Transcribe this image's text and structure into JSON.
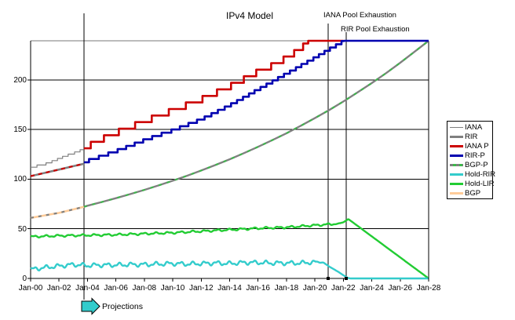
{
  "chart_data": {
    "type": "line",
    "title": "IPv4 Model",
    "x_axis": {
      "years_span": 28,
      "tick_interval_years": 2,
      "tick_labels": [
        "Jan-00",
        "Jan-02",
        "Jan-04",
        "Jan-06",
        "Jan-08",
        "Jan-10",
        "Jan-12",
        "Jan-14",
        "Jan-16",
        "Jan-18",
        "Jan-20",
        "Jan-22",
        "Jan-24",
        "Jan-26",
        "Jan-28"
      ]
    },
    "y_axis": {
      "ticks": [
        0,
        50,
        100,
        150,
        200
      ],
      "max_value": 239.3
    },
    "annotations": {
      "iana": {
        "label": "IANA Pool Exhaustion",
        "year": 20.93
      },
      "rir": {
        "label": "RIR Pool Exhaustion",
        "year": 22.2
      },
      "projections": {
        "label": "Projections",
        "year": 3.756
      }
    },
    "colors": {
      "gray": "#808080",
      "red": "#cc0000",
      "blue": "#0000b0",
      "cyan": "#33cccc",
      "green": "#22cc33",
      "tan": "#ffcc99",
      "dash_green": "#3cb84a",
      "axis": "#000000",
      "top_border": "#777777",
      "arrow_fill": "#33cccc"
    },
    "legend": [
      {
        "name": "IANA",
        "color": "#808080",
        "width": 1
      },
      {
        "name": "RIR",
        "color": "#808080",
        "width": 3
      },
      {
        "name": "IANA P",
        "color": "#cc0000",
        "width": 3
      },
      {
        "name": "RIR-P",
        "color": "#0000b0",
        "width": 3
      },
      {
        "name": "BGP-P",
        "color": "#808080",
        "dash_color": "#3cb84a",
        "width": 3
      },
      {
        "name": "Hold-RIR",
        "color": "#33cccc",
        "width": 3
      },
      {
        "name": "Hold-LIR",
        "color": "#22cc33",
        "width": 3
      },
      {
        "name": "BGP",
        "color": "#ffcc99",
        "width": 3
      }
    ],
    "series": [
      {
        "id": "iana-hist",
        "name": "IANA",
        "color": "#808080",
        "stroke_width": 1.2,
        "step": 2.2,
        "points": [
          [
            0,
            112
          ],
          [
            0.8,
            114
          ],
          [
            1.6,
            118
          ],
          [
            2.4,
            123
          ],
          [
            3.2,
            127
          ],
          [
            3.75,
            130
          ]
        ]
      },
      {
        "id": "rir-hist",
        "name": "RIR",
        "color": "#808080",
        "stroke_width": 2.6,
        "overlay_dash": {
          "color": "#cc0000",
          "dasharray": "5 5"
        },
        "points": [
          [
            0,
            103
          ],
          [
            1,
            106.3
          ],
          [
            2,
            109.6
          ],
          [
            3,
            113
          ],
          [
            3.75,
            115.5
          ]
        ]
      },
      {
        "id": "bgp-hist",
        "name": "BGP",
        "color": "#ffcc99",
        "stroke_width": 2.6,
        "overlay_dash": {
          "color": "#808080",
          "dasharray": "4 6"
        },
        "points": [
          [
            0,
            61
          ],
          [
            1,
            63.5
          ],
          [
            2,
            66
          ],
          [
            3,
            69.5
          ],
          [
            3.75,
            72.1
          ]
        ]
      },
      {
        "id": "bgp-p",
        "name": "BGP-P",
        "color": "#808080",
        "stroke_width": 2.4,
        "overlay_dash": {
          "color": "#3cb84a",
          "dasharray": "4 7"
        },
        "points": [
          [
            3.75,
            72.1
          ],
          [
            4,
            73.2
          ],
          [
            5,
            76.9
          ],
          [
            6,
            80.8
          ],
          [
            7,
            84.9
          ],
          [
            8,
            89.2
          ],
          [
            9,
            93.7
          ],
          [
            10,
            98.4
          ],
          [
            11,
            103.4
          ],
          [
            12,
            108.7
          ],
          [
            13,
            114.2
          ],
          [
            14,
            120
          ],
          [
            15,
            126.1
          ],
          [
            16,
            132.5
          ],
          [
            17,
            139.2
          ],
          [
            18,
            146.2
          ],
          [
            19,
            153.7
          ],
          [
            20,
            161.4
          ],
          [
            21,
            169.6
          ],
          [
            22,
            178.2
          ],
          [
            23,
            187.3
          ],
          [
            24,
            196.7
          ],
          [
            25,
            206.7
          ],
          [
            26,
            217.2
          ],
          [
            27,
            228.2
          ],
          [
            28,
            239.3
          ]
        ]
      },
      {
        "id": "iana-p",
        "name": "IANA P",
        "color": "#cc0000",
        "stroke_width": 2.6,
        "step": 6.6,
        "clamp": 239.3,
        "points": [
          [
            3.75,
            131
          ],
          [
            5,
            140
          ],
          [
            6,
            146.5
          ],
          [
            7,
            152
          ],
          [
            8,
            158
          ],
          [
            9,
            163.5
          ],
          [
            10,
            169
          ],
          [
            11,
            174.5
          ],
          [
            12,
            180
          ],
          [
            13,
            186.5
          ],
          [
            14,
            193
          ],
          [
            15,
            200.5
          ],
          [
            16,
            208
          ],
          [
            17,
            214
          ],
          [
            18,
            222
          ],
          [
            19,
            231
          ],
          [
            19.55,
            239.3
          ],
          [
            22,
            239.3
          ]
        ]
      },
      {
        "id": "rir-p",
        "name": "RIR-P",
        "color": "#0000b0",
        "stroke_width": 2.6,
        "step": 3.3,
        "clamp": 239.3,
        "points": [
          [
            3.75,
            117
          ],
          [
            5,
            123
          ],
          [
            6,
            128
          ],
          [
            7,
            133.5
          ],
          [
            8,
            139
          ],
          [
            9,
            144
          ],
          [
            10,
            149
          ],
          [
            11,
            154.5
          ],
          [
            12,
            160
          ],
          [
            13,
            167
          ],
          [
            14,
            174
          ],
          [
            15,
            182
          ],
          [
            16,
            190
          ],
          [
            17,
            198
          ],
          [
            18,
            206
          ],
          [
            19,
            214
          ],
          [
            20,
            222
          ],
          [
            21,
            230.5
          ],
          [
            22.1,
            239.3
          ],
          [
            28,
            239.3
          ]
        ]
      },
      {
        "id": "hold-lir",
        "name": "Hold-LIR",
        "color": "#22cc33",
        "stroke_width": 2.4,
        "wiggle": {
          "amp": 0.8,
          "until": 21.8
        },
        "points": [
          [
            0,
            42
          ],
          [
            2,
            43
          ],
          [
            4,
            43.5
          ],
          [
            6,
            44
          ],
          [
            8,
            45
          ],
          [
            10,
            46
          ],
          [
            12,
            47.5
          ],
          [
            14,
            49
          ],
          [
            16,
            50.5
          ],
          [
            18,
            51.5
          ],
          [
            20,
            53.5
          ],
          [
            21,
            54.5
          ],
          [
            21.6,
            55
          ],
          [
            22,
            56.5
          ],
          [
            22.35,
            59.8
          ],
          [
            28,
            0
          ]
        ]
      },
      {
        "id": "hold-rir",
        "name": "Hold-RIR",
        "color": "#33cccc",
        "stroke_width": 2.4,
        "wiggle": {
          "amp": 1.6,
          "until": 20.5
        },
        "points": [
          [
            0,
            9
          ],
          [
            1,
            11
          ],
          [
            2,
            12.5
          ],
          [
            3,
            14
          ],
          [
            4,
            13
          ],
          [
            5,
            13.5
          ],
          [
            6,
            13.5
          ],
          [
            7,
            14
          ],
          [
            8,
            14
          ],
          [
            9,
            14.5
          ],
          [
            10,
            15
          ],
          [
            11,
            14.5
          ],
          [
            12,
            15
          ],
          [
            13,
            15.5
          ],
          [
            14,
            15
          ],
          [
            15,
            16
          ],
          [
            16,
            16
          ],
          [
            17,
            15.5
          ],
          [
            18,
            15.5
          ],
          [
            19,
            15.5
          ],
          [
            20,
            16.5
          ],
          [
            20.6,
            16
          ],
          [
            21,
            12
          ],
          [
            21.6,
            7
          ],
          [
            22.3,
            0.5
          ],
          [
            22.5,
            0
          ],
          [
            28,
            0
          ]
        ]
      }
    ]
  }
}
